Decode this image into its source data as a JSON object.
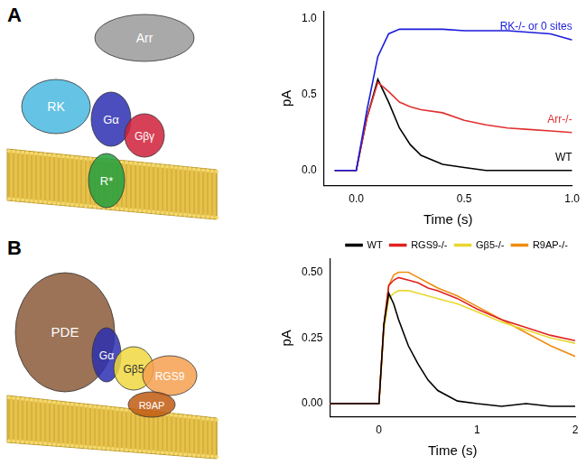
{
  "chart_data": [
    {
      "type": "line",
      "panel": "A",
      "x_label": "Time (s)",
      "y_label": "pA",
      "x": [
        -0.1,
        -0.05,
        0,
        0.05,
        0.1,
        0.15,
        0.2,
        0.25,
        0.3,
        0.4,
        0.5,
        0.6,
        0.7,
        0.8,
        0.9,
        1.0
      ],
      "series": [
        {
          "name": "RK-/- or 0 sites",
          "color": "#1a1adc",
          "values": [
            0,
            0,
            0,
            0.4,
            0.75,
            0.9,
            0.93,
            0.93,
            0.93,
            0.93,
            0.92,
            0.92,
            0.92,
            0.91,
            0.9,
            0.86
          ]
        },
        {
          "name": "Arr-/-",
          "color": "#e03030",
          "values": [
            0,
            0,
            0,
            0.35,
            0.58,
            0.52,
            0.45,
            0.42,
            0.4,
            0.38,
            0.33,
            0.3,
            0.28,
            0.27,
            0.26,
            0.25
          ]
        },
        {
          "name": "WT",
          "color": "#000000",
          "values": [
            0,
            0,
            0,
            0.35,
            0.6,
            0.45,
            0.28,
            0.17,
            0.1,
            0.04,
            0.02,
            0,
            0,
            0,
            0,
            0
          ]
        }
      ],
      "xlim": [
        -0.15,
        1.0
      ],
      "xticks": [
        {
          "value": 0,
          "label": "0.0"
        },
        {
          "value": 0.5,
          "label": "0.5"
        },
        {
          "value": 1,
          "label": "1.0"
        }
      ],
      "ylim": [
        -0.1,
        1.05
      ],
      "yticks": [
        {
          "value": 0,
          "label": "0.0"
        },
        {
          "value": 0.5,
          "label": "0.5"
        },
        {
          "value": 1,
          "label": "1.0"
        }
      ],
      "grid": false
    },
    {
      "type": "line",
      "panel": "B",
      "x_label": "Time (s)",
      "y_label": "pA",
      "x": [
        -0.5,
        -0.25,
        0,
        0.05,
        0.1,
        0.15,
        0.2,
        0.3,
        0.4,
        0.5,
        0.6,
        0.8,
        1.0,
        1.25,
        1.5,
        1.75,
        2.0
      ],
      "series": [
        {
          "name": "WT",
          "color": "#000000",
          "values": [
            0,
            0,
            0,
            0.3,
            0.42,
            0.38,
            0.32,
            0.22,
            0.15,
            0.09,
            0.05,
            0.01,
            0,
            -0.01,
            0,
            -0.01,
            -0.01
          ]
        },
        {
          "name": "RGS9-/-",
          "color": "#e02020",
          "values": [
            0,
            0,
            0,
            0.3,
            0.45,
            0.47,
            0.48,
            0.47,
            0.46,
            0.44,
            0.43,
            0.4,
            0.36,
            0.32,
            0.29,
            0.26,
            0.24
          ]
        },
        {
          "name": "Gβ5-/-",
          "color": "#e8d830",
          "values": [
            0,
            0,
            0,
            0.28,
            0.4,
            0.42,
            0.43,
            0.43,
            0.42,
            0.41,
            0.4,
            0.38,
            0.35,
            0.31,
            0.28,
            0.25,
            0.23
          ]
        },
        {
          "name": "R9AP-/-",
          "color": "#f08c10",
          "values": [
            0,
            0,
            0,
            0.3,
            0.45,
            0.49,
            0.5,
            0.5,
            0.48,
            0.46,
            0.44,
            0.41,
            0.37,
            0.32,
            0.27,
            0.22,
            0.18
          ]
        }
      ],
      "xlim": [
        -0.5,
        2.0
      ],
      "xticks": [
        0,
        1,
        2
      ],
      "ylim": [
        -0.05,
        0.55
      ],
      "yticks": [
        {
          "value": 0,
          "label": "0.00"
        },
        {
          "value": 0.25,
          "label": "0.25"
        },
        {
          "value": 0.5,
          "label": "0.50"
        }
      ],
      "grid": false,
      "legend": "top-right"
    }
  ],
  "diagrams": [
    {
      "panel": "A",
      "labels": [
        "Arr",
        "RK",
        "Gα",
        "Gβγ",
        "R*"
      ]
    },
    {
      "panel": "B",
      "labels": [
        "PDE",
        "Gα",
        "Gβ5",
        "RGS9",
        "R9AP"
      ]
    }
  ]
}
